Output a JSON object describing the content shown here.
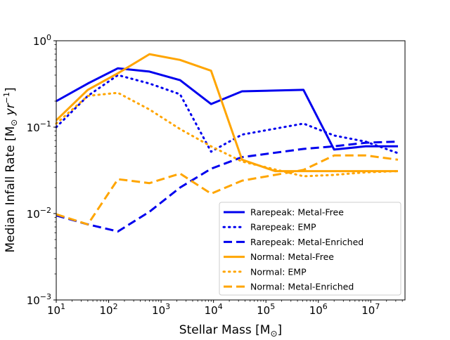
{
  "chart_data": {
    "type": "line",
    "title": "",
    "xlabel": {
      "main": "Stellar Mass [M",
      "sub": "⊙",
      "close": "]"
    },
    "ylabel": {
      "main": "Median Infall Rate [M",
      "sub": "⊙",
      "unit": "yr",
      "sup": "−1",
      "close": "]"
    },
    "xscale": "log",
    "yscale": "log",
    "xlim": [
      10,
      45000000
    ],
    "ylim": [
      0.001,
      1
    ],
    "x_ticks": [
      {
        "value": 10,
        "base": "10",
        "exp": "1"
      },
      {
        "value": 100,
        "base": "10",
        "exp": "2"
      },
      {
        "value": 1000,
        "base": "10",
        "exp": "3"
      },
      {
        "value": 10000,
        "base": "10",
        "exp": "4"
      },
      {
        "value": 100000,
        "base": "10",
        "exp": "5"
      },
      {
        "value": 1000000,
        "base": "10",
        "exp": "6"
      },
      {
        "value": 10000000,
        "base": "10",
        "exp": "7"
      }
    ],
    "y_ticks": [
      {
        "value": 1,
        "base": "10",
        "exp": "0"
      },
      {
        "value": 0.1,
        "base": "10",
        "exp": "−1"
      },
      {
        "value": 0.01,
        "base": "10",
        "exp": "−2"
      },
      {
        "value": 0.001,
        "base": "10",
        "exp": "−3"
      }
    ],
    "grid": false,
    "legend_position": "lower-right",
    "series": [
      {
        "name": "Rarepeak: Metal-Free",
        "color": "#0000ee",
        "style": "solid",
        "x": [
          10,
          40,
          150,
          600,
          2300,
          9000,
          35000,
          520000,
          2000000,
          8000000,
          33000000
        ],
        "y": [
          0.2,
          0.32,
          0.48,
          0.44,
          0.35,
          0.185,
          0.26,
          0.27,
          0.055,
          0.06,
          0.06
        ]
      },
      {
        "name": "Rarepeak: EMP",
        "color": "#0000ee",
        "style": "dotted",
        "x": [
          10,
          40,
          150,
          600,
          2300,
          9000,
          35000,
          520000,
          2000000,
          8000000,
          33000000
        ],
        "y": [
          0.1,
          0.23,
          0.4,
          0.32,
          0.24,
          0.052,
          0.082,
          0.11,
          0.08,
          0.068,
          0.05
        ]
      },
      {
        "name": "Rarepeak: Metal-Enriched",
        "color": "#0000ee",
        "style": "dashed",
        "x": [
          10,
          40,
          150,
          600,
          2300,
          9000,
          35000,
          520000,
          2000000,
          8000000,
          33000000
        ],
        "y": [
          0.0095,
          0.0075,
          0.0062,
          0.0105,
          0.02,
          0.033,
          0.045,
          0.056,
          0.06,
          0.066,
          0.068
        ]
      },
      {
        "name": "Normal: Metal-Free",
        "color": "#ffa500",
        "style": "solid",
        "x": [
          10,
          40,
          150,
          600,
          2300,
          9000,
          35000,
          150000,
          520000,
          2000000,
          8000000,
          33000000
        ],
        "y": [
          0.12,
          0.27,
          0.42,
          0.7,
          0.6,
          0.45,
          0.042,
          0.031,
          0.031,
          0.031,
          0.031,
          0.031
        ]
      },
      {
        "name": "Normal: EMP",
        "color": "#ffa500",
        "style": "dotted",
        "x": [
          10,
          40,
          150,
          600,
          2300,
          9000,
          35000,
          520000,
          2000000,
          8000000,
          33000000
        ],
        "y": [
          0.11,
          0.23,
          0.25,
          0.16,
          0.095,
          0.06,
          0.04,
          0.027,
          0.028,
          0.03,
          0.031
        ]
      },
      {
        "name": "Normal: Metal-Enriched",
        "color": "#ffa500",
        "style": "dashed",
        "x": [
          10,
          40,
          150,
          600,
          2300,
          9000,
          35000,
          520000,
          2000000,
          8000000,
          33000000
        ],
        "y": [
          0.0098,
          0.0075,
          0.025,
          0.0225,
          0.029,
          0.017,
          0.024,
          0.032,
          0.047,
          0.047,
          0.042
        ]
      }
    ]
  }
}
